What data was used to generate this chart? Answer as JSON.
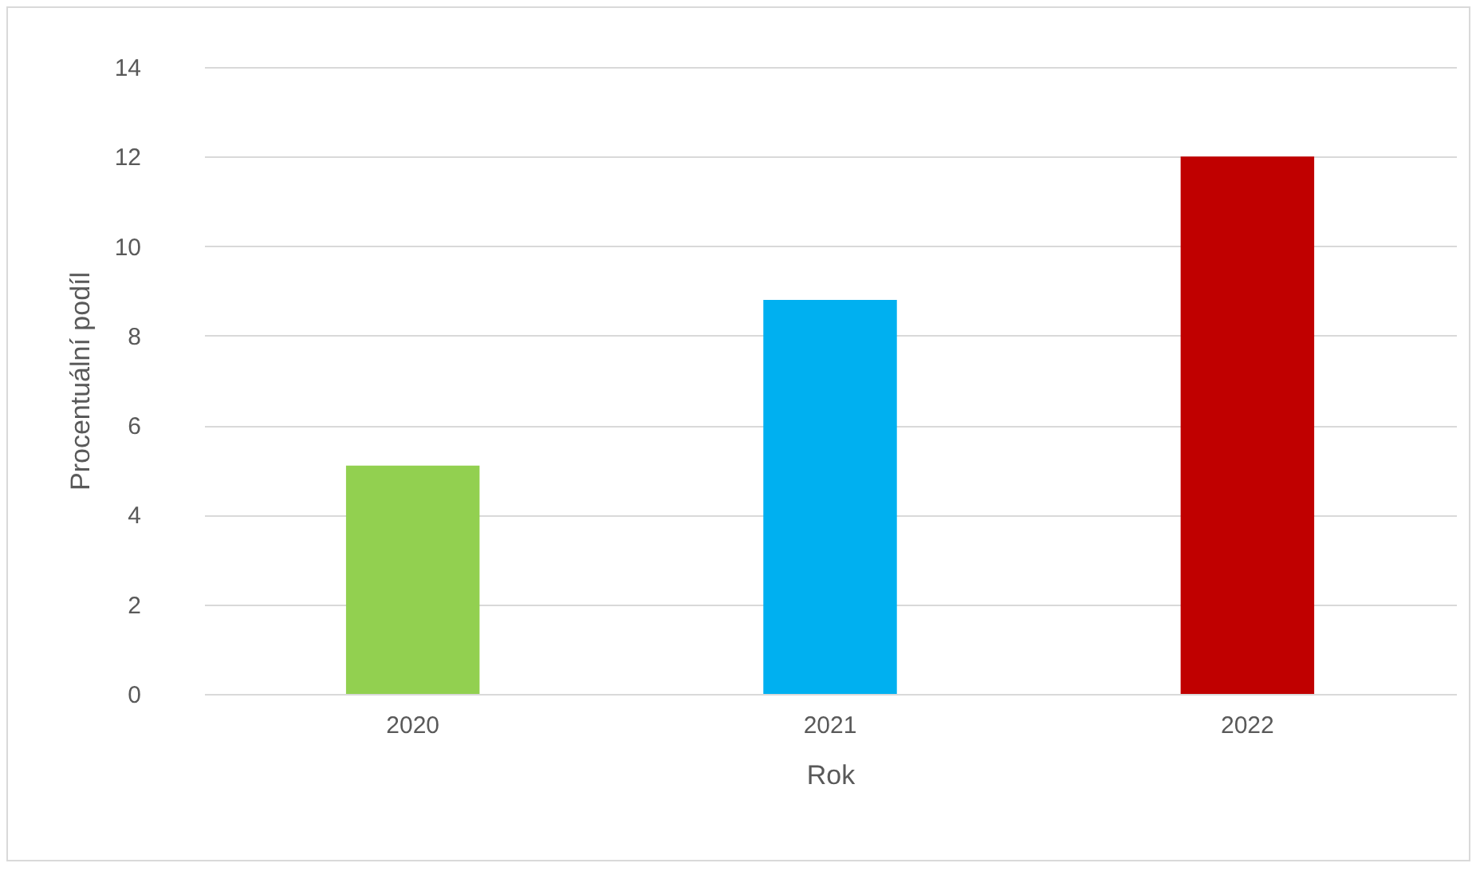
{
  "chart_data": {
    "type": "bar",
    "xlabel": "Rok",
    "ylabel": "Procentuální podíl",
    "categories": [
      "2020",
      "2021",
      "2022"
    ],
    "values": [
      5.1,
      8.8,
      12.0
    ],
    "colors": [
      "#92d050",
      "#00b0f0",
      "#c00000"
    ],
    "ylim": [
      0,
      14
    ],
    "yticks": [
      0,
      2,
      4,
      6,
      8,
      10,
      12,
      14
    ],
    "grid": "y"
  }
}
